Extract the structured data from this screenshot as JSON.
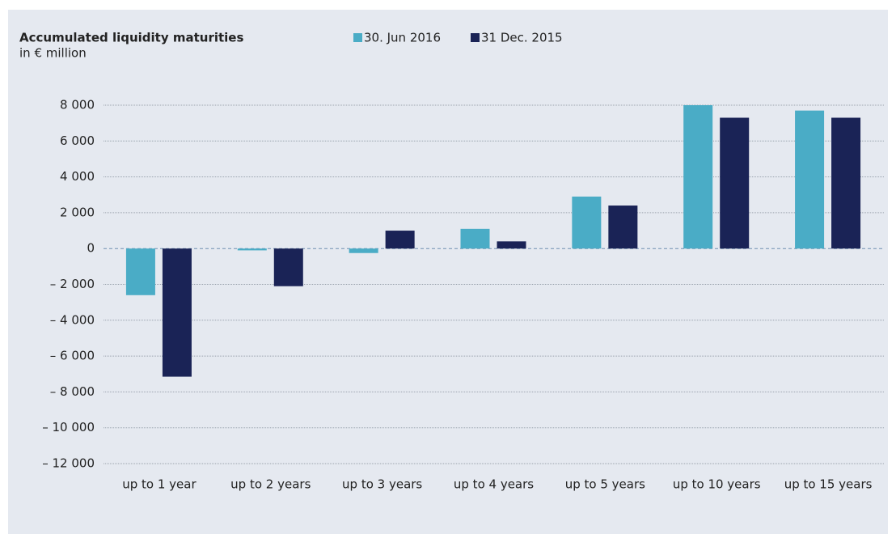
{
  "chart_data": {
    "type": "bar",
    "title": "Accumulated liquidity maturities",
    "subtitle": "in € million",
    "categories": [
      "up to 1 year",
      "up to 2 years",
      "up to 3 years",
      "up to 4 years",
      "up to 5 years",
      "up to 10 years",
      "up to 15 years"
    ],
    "series": [
      {
        "name": "30. Jun 2016",
        "color": "#4aacc6",
        "values": [
          -2600,
          -100,
          -250,
          1100,
          2900,
          8000,
          7700
        ]
      },
      {
        "name": "31 Dec. 2015",
        "color": "#1a2356",
        "values": [
          -7150,
          -2100,
          1000,
          400,
          2400,
          7300,
          7300
        ]
      }
    ],
    "ylim": [
      -12000,
      8000
    ],
    "yticks": [
      {
        "value": -12000,
        "label": "– 12 000"
      },
      {
        "value": -10000,
        "label": "– 10 000"
      },
      {
        "value": -8000,
        "label": "– 8 000"
      },
      {
        "value": -6000,
        "label": "– 6 000"
      },
      {
        "value": -4000,
        "label": "– 4 000"
      },
      {
        "value": -2000,
        "label": "– 2 000"
      },
      0,
      {
        "value": 2000,
        "label": "2 000"
      },
      {
        "value": 4000,
        "label": "4 000"
      },
      {
        "value": 6000,
        "label": "6 000"
      },
      {
        "value": 8000,
        "label": "8 000"
      }
    ],
    "grid": true
  }
}
